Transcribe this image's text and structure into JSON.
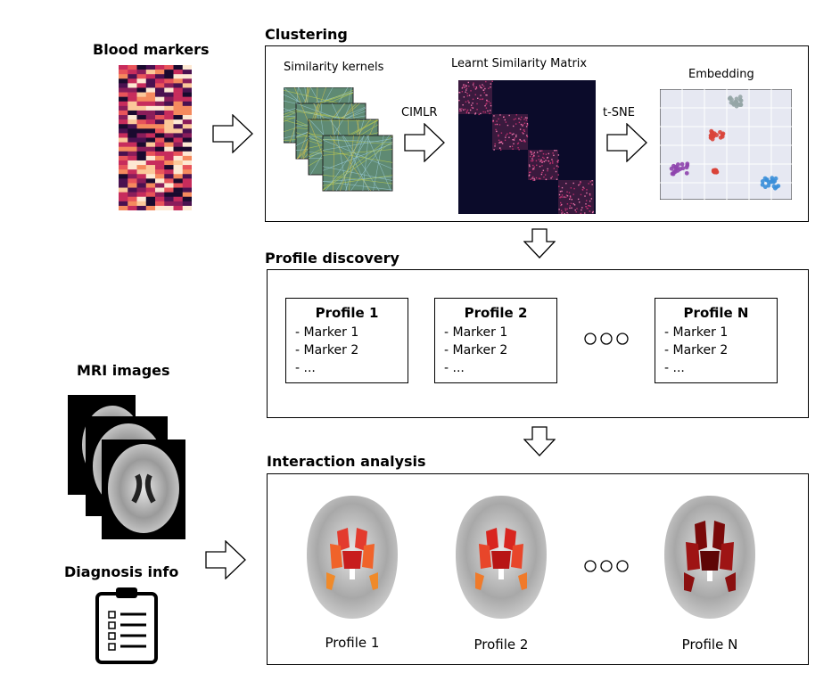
{
  "left": {
    "blood_markers_title": "Blood markers",
    "mri_title": "MRI images",
    "diagnosis_title": "Diagnosis info"
  },
  "clustering": {
    "title": "Clustering",
    "kernels_label": "Similarity kernels",
    "matrix_label": "Learnt Similarity Matrix",
    "embedding_label": "Embedding",
    "arrow1_label": "CIMLR",
    "arrow2_label": "t-SNE"
  },
  "profile_discovery": {
    "title": "Profile discovery",
    "profiles": [
      {
        "title": "Profile 1",
        "markers": [
          "- Marker 1",
          "- Marker 2",
          "- ..."
        ]
      },
      {
        "title": "Profile 2",
        "markers": [
          "- Marker 1",
          "- Marker 2",
          "- ..."
        ]
      },
      {
        "title": "Profile N",
        "markers": [
          "- Marker 1",
          "- Marker 2",
          "- ..."
        ]
      }
    ]
  },
  "interaction": {
    "title": "Interaction analysis",
    "captions": [
      "Profile 1",
      "Profile 2",
      "Profile N"
    ]
  },
  "colors": {
    "heatmap": [
      "#1a0a2e",
      "#4a1150",
      "#8a1d5a",
      "#c72c5c",
      "#e8545a",
      "#f58a5e",
      "#fbc89a",
      "#fde9d3"
    ],
    "cluster_purple": "#8e44ad",
    "cluster_red": "#d9443a",
    "cluster_gray": "#95a5a6",
    "cluster_blue": "#3a8fd9",
    "kernel_green": "#6b8f7a"
  }
}
